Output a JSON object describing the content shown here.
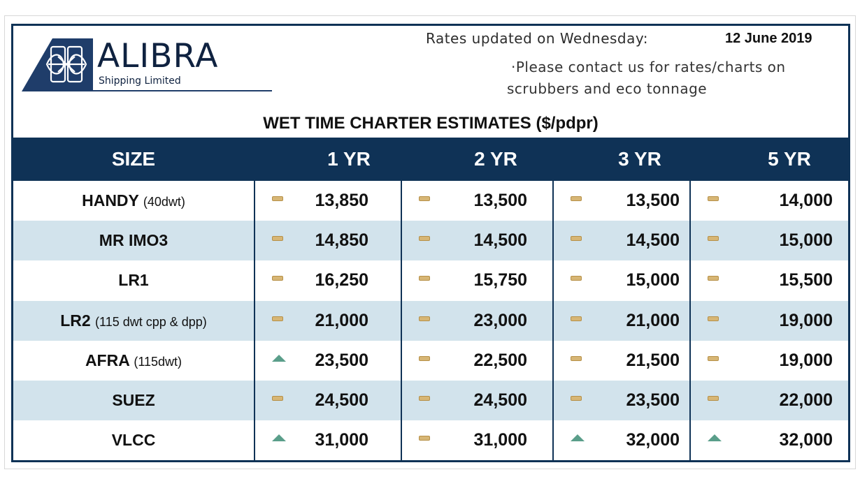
{
  "logo": {
    "brand": "ALIBRA",
    "subtitle": "Shipping Limited"
  },
  "header": {
    "rates_label": "Rates updated on Wednesday:",
    "date": "12 June 2019",
    "note_line1": "·Please contact us for rates/charts on",
    "note_line2": "scrubbers and eco tonnage"
  },
  "table": {
    "title": "WET TIME CHARTER ESTIMATES ($/pdpr)",
    "columns": [
      "SIZE",
      "1 YR",
      "2 YR",
      "3 YR",
      "5 YR"
    ],
    "rows": [
      {
        "size": "HANDY",
        "detail": "(40dwt)",
        "values": [
          "13,850",
          "13,500",
          "13,500",
          "14,000"
        ],
        "trends": [
          "flat",
          "flat",
          "flat",
          "flat"
        ]
      },
      {
        "size": "MR IMO3",
        "detail": "",
        "values": [
          "14,850",
          "14,500",
          "14,500",
          "15,000"
        ],
        "trends": [
          "flat",
          "flat",
          "flat",
          "flat"
        ]
      },
      {
        "size": "LR1",
        "detail": "",
        "values": [
          "16,250",
          "15,750",
          "15,000",
          "15,500"
        ],
        "trends": [
          "flat",
          "flat",
          "flat",
          "flat"
        ]
      },
      {
        "size": "LR2",
        "detail": "(115 dwt cpp & dpp)",
        "values": [
          "21,000",
          "23,000",
          "21,000",
          "19,000"
        ],
        "trends": [
          "flat",
          "flat",
          "flat",
          "flat"
        ]
      },
      {
        "size": "AFRA",
        "detail": "(115dwt)",
        "values": [
          "23,500",
          "22,500",
          "21,500",
          "19,000"
        ],
        "trends": [
          "up",
          "flat",
          "flat",
          "flat"
        ]
      },
      {
        "size": "SUEZ",
        "detail": "",
        "values": [
          "24,500",
          "24,500",
          "23,500",
          "22,000"
        ],
        "trends": [
          "flat",
          "flat",
          "flat",
          "flat"
        ]
      },
      {
        "size": "VLCC",
        "detail": "",
        "values": [
          "31,000",
          "31,000",
          "32,000",
          "32,000"
        ],
        "trends": [
          "up",
          "flat",
          "up",
          "up"
        ]
      }
    ]
  },
  "colors": {
    "header_bg": "#0f3256",
    "alt_row_bg": "#d2e3ec",
    "flat_indicator": "#d7b675",
    "up_indicator": "#5a9e8a"
  }
}
